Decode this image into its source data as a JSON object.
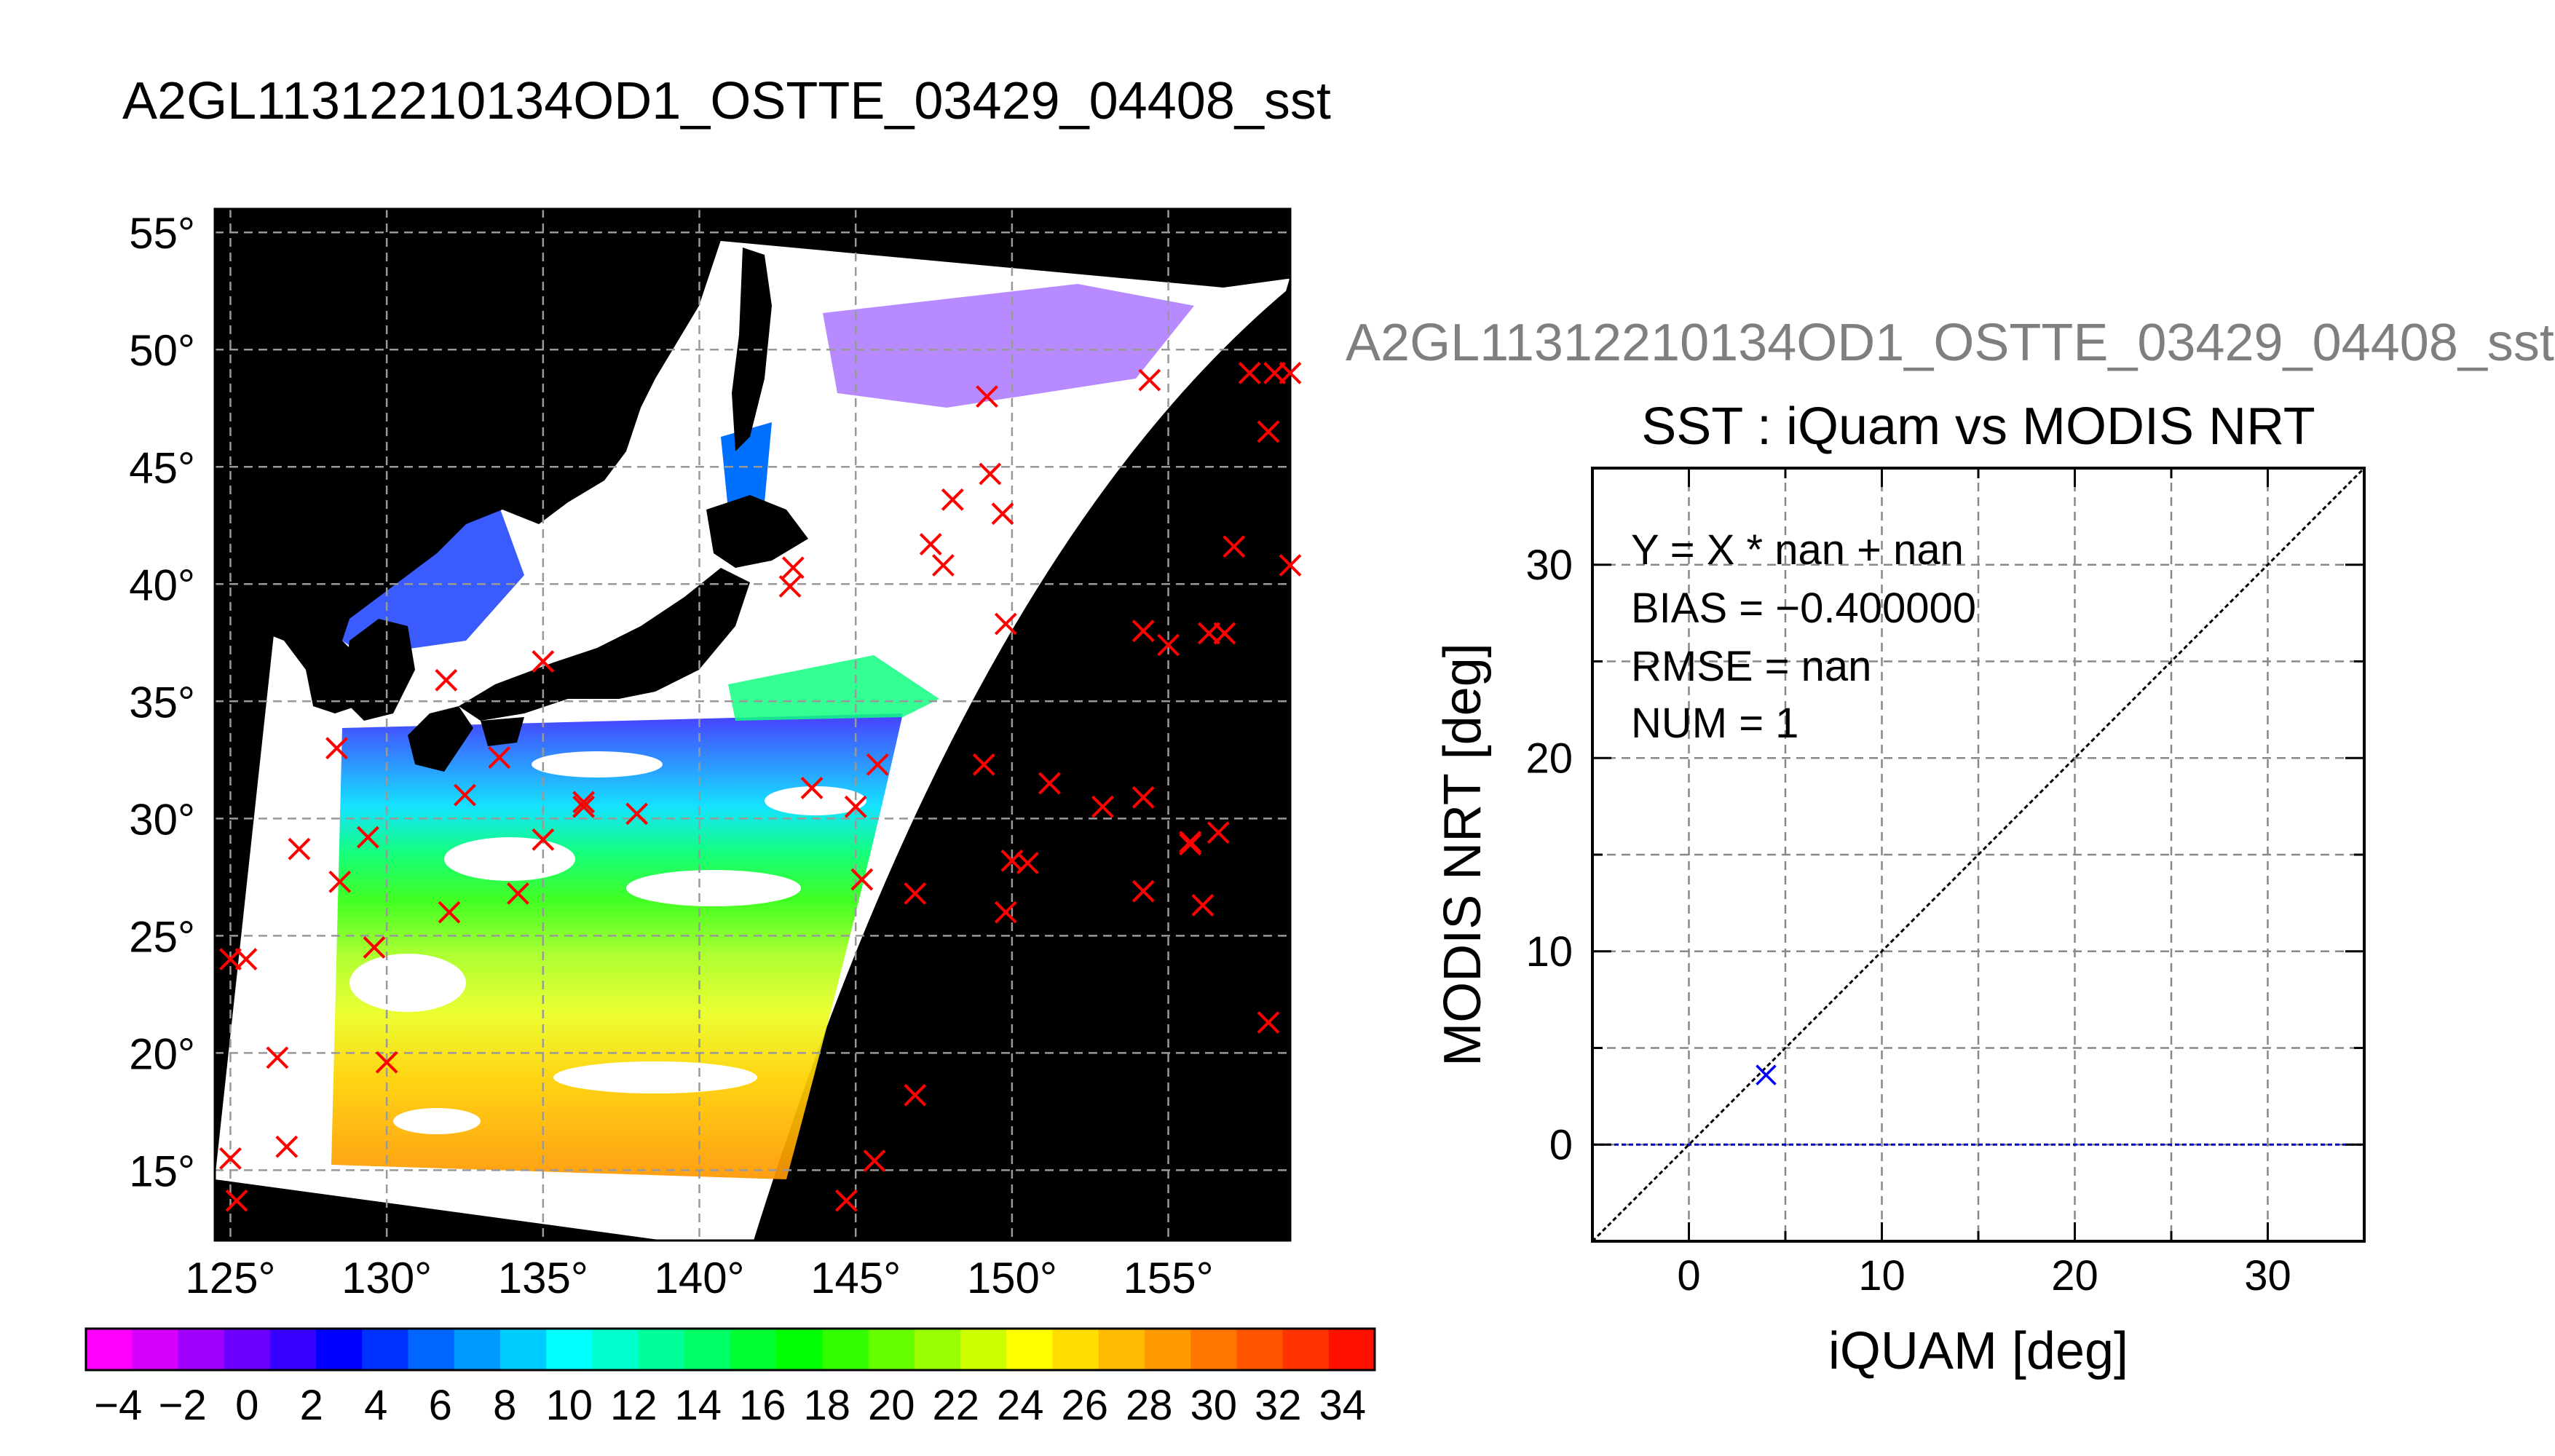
{
  "header": {
    "main_title": "A2GL11312210134OD1_OSTTE_03429_04408_sst",
    "right_title": "A2GL11312210134OD1_OSTTE_03429_04408_sst"
  },
  "chart_data": [
    {
      "type": "map",
      "lon_ticks": [
        125,
        130,
        135,
        140,
        145,
        150,
        155
      ],
      "lat_ticks": [
        15,
        20,
        25,
        30,
        35,
        40,
        45,
        50,
        55
      ],
      "lon_range": [
        124.5,
        158.9
      ],
      "lat_range": [
        12,
        56
      ],
      "degree_symbol": "°",
      "grid": true,
      "colorbar": {
        "ticks": [
          "−4",
          "−2",
          "0",
          "2",
          "4",
          "6",
          "8",
          "10",
          "12",
          "14",
          "16",
          "18",
          "20",
          "22",
          "24",
          "26",
          "28",
          "30",
          "32",
          "34"
        ],
        "range": [
          -5,
          35
        ],
        "colors": [
          "#ff00ff",
          "#d600ff",
          "#a100ff",
          "#6c00ff",
          "#3700ff",
          "#0000ff",
          "#0033ff",
          "#0066ff",
          "#0099ff",
          "#00ccff",
          "#00ffff",
          "#00ffcc",
          "#00ff99",
          "#00ff66",
          "#00ff33",
          "#00ff00",
          "#33ff00",
          "#66ff00",
          "#99ff00",
          "#ccff00",
          "#ffff00",
          "#ffdd00",
          "#ffbb00",
          "#ff9900",
          "#ff7700",
          "#ff5500",
          "#ff3300",
          "#ff1100"
        ]
      },
      "colors": {
        "land": "#000000",
        "swath_background": "#ffffff",
        "marker": "#ff0000"
      },
      "buoy_points": [
        [
          125.0,
          24.0
        ],
        [
          125.5,
          24.0
        ],
        [
          125.0,
          15.5
        ],
        [
          125.2,
          13.7
        ],
        [
          126.5,
          19.8
        ],
        [
          126.8,
          16.0
        ],
        [
          127.2,
          28.7
        ],
        [
          128.4,
          33.0
        ],
        [
          128.5,
          27.3
        ],
        [
          129.4,
          29.2
        ],
        [
          129.6,
          24.5
        ],
        [
          130.0,
          19.6
        ],
        [
          131.9,
          35.9
        ],
        [
          132.0,
          26.0
        ],
        [
          132.5,
          31.0
        ],
        [
          133.6,
          32.6
        ],
        [
          134.2,
          26.8
        ],
        [
          135.0,
          36.7
        ],
        [
          135.0,
          29.1
        ],
        [
          136.3,
          30.5
        ],
        [
          136.3,
          30.7
        ],
        [
          138.0,
          30.2
        ],
        [
          143.0,
          40.7
        ],
        [
          142.9,
          39.9
        ],
        [
          143.6,
          31.3
        ],
        [
          145.0,
          30.5
        ],
        [
          145.2,
          27.4
        ],
        [
          145.7,
          32.3
        ],
        [
          144.7,
          13.7
        ],
        [
          145.6,
          15.4
        ],
        [
          146.9,
          26.8
        ],
        [
          146.9,
          18.2
        ],
        [
          147.4,
          41.7
        ],
        [
          147.8,
          40.8
        ],
        [
          148.1,
          43.6
        ],
        [
          149.2,
          48.0
        ],
        [
          149.3,
          44.7
        ],
        [
          149.7,
          43.0
        ],
        [
          149.8,
          38.3
        ],
        [
          149.8,
          26.0
        ],
        [
          150.0,
          28.2
        ],
        [
          150.5,
          28.1
        ],
        [
          149.1,
          32.3
        ],
        [
          151.2,
          31.5
        ],
        [
          152.9,
          30.5
        ],
        [
          154.2,
          30.9
        ],
        [
          154.2,
          26.9
        ],
        [
          154.4,
          48.7
        ],
        [
          154.2,
          38.0
        ],
        [
          155.0,
          37.4
        ],
        [
          155.7,
          29.0
        ],
        [
          155.7,
          28.9
        ],
        [
          156.1,
          26.3
        ],
        [
          156.3,
          37.9
        ],
        [
          156.6,
          29.4
        ],
        [
          156.8,
          37.9
        ],
        [
          157.1,
          41.6
        ],
        [
          157.6,
          49.0
        ],
        [
          158.2,
          46.5
        ],
        [
          158.4,
          49.0
        ],
        [
          158.9,
          49.0
        ],
        [
          158.2,
          21.3
        ],
        [
          158.9,
          40.8
        ]
      ]
    },
    {
      "type": "scatter",
      "title": "SST : iQuam vs MODIS NRT",
      "xlabel": "iQUAM [deg]",
      "ylabel": "MODIS NRT [deg]",
      "xlim": [
        -5,
        35
      ],
      "ylim": [
        -5,
        35
      ],
      "xticks": [
        0,
        10,
        20,
        30
      ],
      "yticks": [
        0,
        10,
        20,
        30
      ],
      "grid": true,
      "points": [
        {
          "x": 4.0,
          "y": 3.6
        }
      ],
      "reference_line": {
        "slope": 1,
        "intercept": 0
      },
      "zero_line": {
        "y": 0
      },
      "colors": {
        "point": "#0000ff",
        "zero_line": "#0000b4",
        "reference_line": "#000000"
      },
      "stats": {
        "fit": "Y = X * nan + nan",
        "bias": "BIAS = −0.400000",
        "rmse": "RMSE = nan",
        "num": "NUM = 1"
      }
    }
  ]
}
